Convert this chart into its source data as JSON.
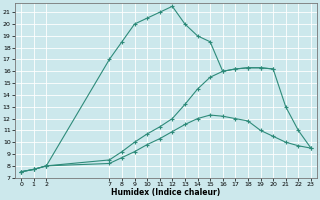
{
  "xlabel": "Humidex (Indice chaleur)",
  "bg_color": "#cce8ec",
  "grid_color": "#ffffff",
  "line_color": "#2e8b7a",
  "xlim": [
    -0.5,
    23.5
  ],
  "ylim": [
    7,
    21.8
  ],
  "xticks": [
    0,
    1,
    2,
    7,
    8,
    9,
    10,
    11,
    12,
    13,
    14,
    15,
    16,
    17,
    18,
    19,
    20,
    21,
    22,
    23
  ],
  "yticks": [
    7,
    8,
    9,
    10,
    11,
    12,
    13,
    14,
    15,
    16,
    17,
    18,
    19,
    20,
    21
  ],
  "line1_x": [
    0,
    1,
    2,
    7,
    8,
    9,
    10,
    11,
    12,
    13,
    14,
    15,
    16,
    17,
    18,
    19,
    20
  ],
  "line1_y": [
    7.5,
    7.7,
    8.0,
    17.0,
    18.5,
    20.0,
    20.5,
    21.0,
    21.5,
    20.0,
    19.0,
    18.5,
    16.0,
    16.2,
    16.3,
    16.3,
    16.2
  ],
  "line2_x": [
    0,
    1,
    2,
    7,
    8,
    9,
    10,
    11,
    12,
    13,
    14,
    15,
    16,
    17,
    18,
    19,
    20,
    21,
    22,
    23
  ],
  "line2_y": [
    7.5,
    7.7,
    8.0,
    8.5,
    9.2,
    10.0,
    10.7,
    11.3,
    12.0,
    13.2,
    14.5,
    15.5,
    16.0,
    16.2,
    16.3,
    16.3,
    16.2,
    13.0,
    11.0,
    9.5
  ],
  "line3_x": [
    0,
    1,
    2,
    7,
    8,
    9,
    10,
    11,
    12,
    13,
    14,
    15,
    16,
    17,
    18,
    19,
    20,
    21,
    22,
    23
  ],
  "line3_y": [
    7.5,
    7.7,
    8.0,
    8.2,
    8.7,
    9.2,
    9.8,
    10.3,
    10.9,
    11.5,
    12.0,
    12.3,
    12.2,
    12.0,
    11.8,
    11.0,
    10.5,
    10.0,
    9.7,
    9.5
  ]
}
